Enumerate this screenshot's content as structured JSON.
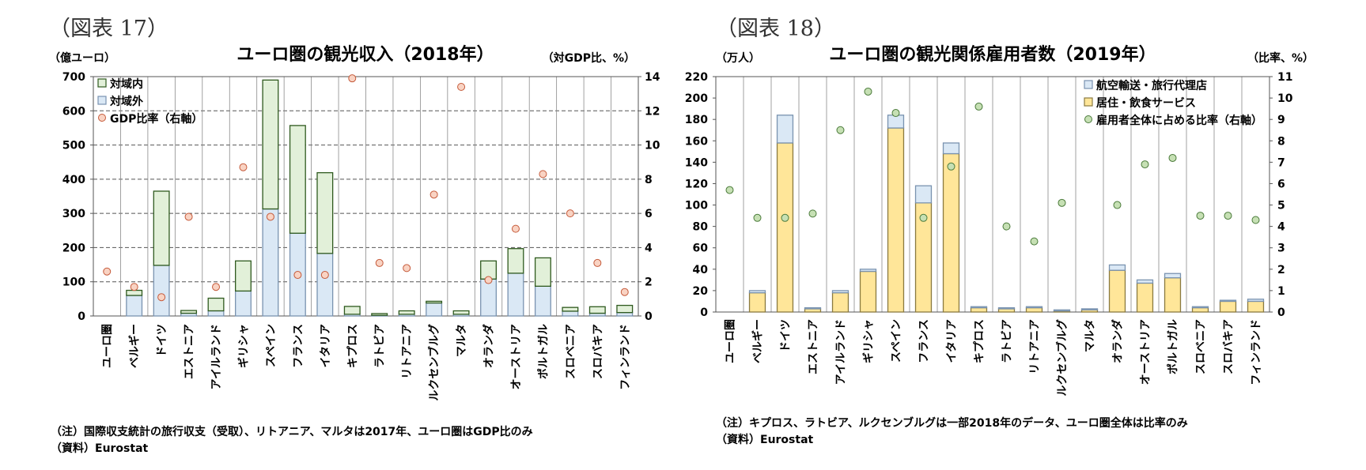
{
  "panels": [
    {
      "figure_label": "（図表 17）",
      "note": "（注）国際収支統計の旅行収支（受取）、リトアニア、マルタは2017年、ユーロ圏はGDP比のみ",
      "source": "（資料）Eurostat"
    },
    {
      "figure_label": "（図表 18）",
      "note": "（注）キプロス、ラトビア、ルクセンブルグは一部2018年のデータ、ユーロ圏全体は比率のみ",
      "source": "（資料）Eurostat"
    }
  ],
  "chart_data": [
    {
      "type": "bar",
      "stacked": true,
      "title": "ユーロ圏の観光収入（2018年）",
      "ylabel": "（億ユーロ）",
      "y2label": "（対GDP比、%）",
      "ylim": [
        0,
        700
      ],
      "yticks": [
        0,
        100,
        200,
        300,
        400,
        500,
        600,
        700
      ],
      "y2lim": [
        0,
        14
      ],
      "y2ticks": [
        0,
        2,
        4,
        6,
        8,
        10,
        12,
        14
      ],
      "grid": "horizontal dashed",
      "legend_position": "top-left",
      "categories": [
        "ユーロ圏",
        "ベルギー",
        "ドイツ",
        "エストニア",
        "アイルランド",
        "ギリシャ",
        "スペイン",
        "フランス",
        "イタリア",
        "キプロス",
        "ラトビア",
        "リトアニア",
        "ルクセンブルグ",
        "マルタ",
        "オランダ",
        "オーストリア",
        "ポルトガル",
        "スロベニア",
        "スロバキア",
        "フィンランド"
      ],
      "series": [
        {
          "name": "対域外",
          "kind": "bar",
          "axis": "left",
          "color": "#dae8f5",
          "edge": "#7a93b0",
          "values": [
            0,
            60,
            148,
            8,
            15,
            73,
            313,
            242,
            183,
            5,
            2,
            5,
            38,
            5,
            108,
            125,
            87,
            14,
            8,
            10
          ]
        },
        {
          "name": "対域内",
          "kind": "bar",
          "axis": "left",
          "color": "#e2f0d9",
          "edge": "#2f5a1f",
          "values": [
            0,
            15,
            217,
            8,
            37,
            88,
            377,
            315,
            236,
            23,
            5,
            10,
            5,
            10,
            53,
            72,
            83,
            11,
            19,
            21
          ]
        },
        {
          "name": "GDP比率（右軸）",
          "kind": "point",
          "axis": "right",
          "color": "#f9d3c3",
          "edge": "#c55a3a",
          "values": [
            2.6,
            1.7,
            1.1,
            5.8,
            1.7,
            8.7,
            5.8,
            2.4,
            2.4,
            13.9,
            3.1,
            2.8,
            7.1,
            13.4,
            2.1,
            5.1,
            8.3,
            6.0,
            3.1,
            1.4
          ]
        }
      ]
    },
    {
      "type": "bar",
      "stacked": true,
      "title": "ユーロ圏の観光関係雇用者数（2019年）",
      "ylabel": "（万人）",
      "y2label": "（比率、%）",
      "ylim": [
        0,
        220
      ],
      "yticks": [
        0,
        20,
        40,
        60,
        80,
        100,
        120,
        140,
        160,
        180,
        200,
        220
      ],
      "y2lim": [
        0,
        11
      ],
      "y2ticks": [
        0,
        1,
        2,
        3,
        4,
        5,
        6,
        7,
        8,
        9,
        10,
        11
      ],
      "grid": "none",
      "legend_position": "top-right",
      "categories": [
        "ユーロ圏",
        "ベルギー",
        "ドイツ",
        "エストニア",
        "アイルランド",
        "ギリシャ",
        "スペイン",
        "フランス",
        "イタリア",
        "キプロス",
        "ラトビア",
        "リトアニア",
        "ルクセンブルグ",
        "マルタ",
        "オランダ",
        "オーストリア",
        "ポルトガル",
        "スロベニア",
        "スロバキア",
        "フィンランド"
      ],
      "series": [
        {
          "name": "居住・飲食サービス",
          "kind": "bar",
          "axis": "left",
          "color": "#ffe699",
          "edge": "#8a7a40",
          "values": [
            0,
            18,
            158,
            3,
            18,
            38,
            172,
            102,
            148,
            4,
            3,
            4,
            1,
            2,
            39,
            27,
            32,
            4,
            10,
            10
          ]
        },
        {
          "name": "航空輸送・旅行代理店",
          "kind": "bar",
          "axis": "left",
          "color": "#dae8f5",
          "edge": "#7a93b0",
          "values": [
            0,
            2,
            26,
            1,
            2,
            2,
            12,
            16,
            10,
            1,
            1,
            1,
            1,
            1,
            5,
            3,
            4,
            1,
            1,
            2
          ]
        },
        {
          "name": "雇用者全体に占める比率（右軸）",
          "kind": "point",
          "axis": "right",
          "color": "#c6e0b4",
          "edge": "#4a7a3a",
          "values": [
            5.7,
            4.4,
            4.4,
            4.6,
            8.5,
            10.3,
            9.3,
            4.4,
            6.8,
            9.6,
            4.0,
            3.3,
            5.1,
            null,
            5.0,
            6.9,
            7.2,
            4.5,
            4.5,
            4.3
          ]
        }
      ]
    }
  ]
}
